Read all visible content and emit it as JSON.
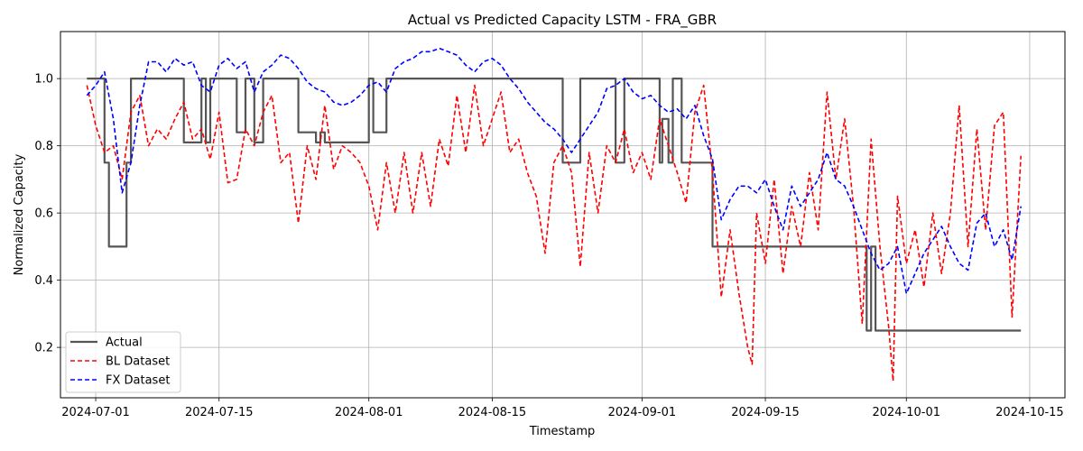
{
  "chart_data": {
    "type": "line",
    "title": "Actual vs Predicted Capacity LSTM - FRA_GBR",
    "xlabel": "Timestamp",
    "ylabel": "Normalized Capacity",
    "xlim": [
      "2024-06-27",
      "2024-10-19"
    ],
    "ylim": [
      0.05,
      1.14
    ],
    "x_ticks": [
      "2024-07-01",
      "2024-07-15",
      "2024-08-01",
      "2024-08-15",
      "2024-09-01",
      "2024-09-15",
      "2024-10-01",
      "2024-10-15"
    ],
    "y_ticks": [
      0.2,
      0.4,
      0.6,
      0.8,
      1.0
    ],
    "y_tick_labels": [
      "0.2",
      "0.4",
      "0.6",
      "0.8",
      "1.0"
    ],
    "grid": true,
    "legend_position": "lower-left",
    "series": [
      {
        "name": "Actual",
        "color": "#555555",
        "style": "solid",
        "step": true,
        "points": [
          [
            "2024-06-30",
            1.0
          ],
          [
            "2024-07-02",
            0.75
          ],
          [
            "2024-07-02.5",
            0.5
          ],
          [
            "2024-07-04.5",
            0.75
          ],
          [
            "2024-07-05",
            1.0
          ],
          [
            "2024-07-11",
            0.81
          ],
          [
            "2024-07-13",
            1.0
          ],
          [
            "2024-07-13.5",
            0.81
          ],
          [
            "2024-07-14",
            1.0
          ],
          [
            "2024-07-17",
            0.84
          ],
          [
            "2024-07-18",
            1.0
          ],
          [
            "2024-07-19",
            0.81
          ],
          [
            "2024-07-20",
            1.0
          ],
          [
            "2024-07-24",
            0.84
          ],
          [
            "2024-07-26",
            0.81
          ],
          [
            "2024-07-26.5",
            0.84
          ],
          [
            "2024-07-27",
            0.81
          ],
          [
            "2024-08-01",
            1.0
          ],
          [
            "2024-08-01.5",
            0.84
          ],
          [
            "2024-08-03",
            1.0
          ],
          [
            "2024-08-23",
            0.75
          ],
          [
            "2024-08-25",
            1.0
          ],
          [
            "2024-08-29",
            0.75
          ],
          [
            "2024-08-30",
            1.0
          ],
          [
            "2024-09-03",
            0.75
          ],
          [
            "2024-09-03.3",
            0.88
          ],
          [
            "2024-09-04",
            0.75
          ],
          [
            "2024-09-04.5",
            1.0
          ],
          [
            "2024-09-05.5",
            0.75
          ],
          [
            "2024-09-09",
            0.5
          ],
          [
            "2024-09-26.5",
            0.25
          ],
          [
            "2024-09-27",
            0.5
          ],
          [
            "2024-09-27.5",
            0.25
          ],
          [
            "2024-10-14",
            0.25
          ]
        ]
      },
      {
        "name": "BL Dataset",
        "color": "#ff0000",
        "style": "dashed",
        "points": [
          [
            "2024-06-30",
            0.98
          ],
          [
            "2024-07-01",
            0.86
          ],
          [
            "2024-07-02",
            0.78
          ],
          [
            "2024-07-03",
            0.8
          ],
          [
            "2024-07-04",
            0.7
          ],
          [
            "2024-07-05",
            0.9
          ],
          [
            "2024-07-06",
            0.95
          ],
          [
            "2024-07-07",
            0.8
          ],
          [
            "2024-07-08",
            0.85
          ],
          [
            "2024-07-09",
            0.82
          ],
          [
            "2024-07-10",
            0.88
          ],
          [
            "2024-07-11",
            0.93
          ],
          [
            "2024-07-12",
            0.82
          ],
          [
            "2024-07-13",
            0.85
          ],
          [
            "2024-07-14",
            0.76
          ],
          [
            "2024-07-15",
            0.9
          ],
          [
            "2024-07-16",
            0.69
          ],
          [
            "2024-07-17",
            0.7
          ],
          [
            "2024-07-18",
            0.85
          ],
          [
            "2024-07-19",
            0.8
          ],
          [
            "2024-07-20",
            0.9
          ],
          [
            "2024-07-21",
            0.95
          ],
          [
            "2024-07-22",
            0.75
          ],
          [
            "2024-07-23",
            0.78
          ],
          [
            "2024-07-24",
            0.57
          ],
          [
            "2024-07-25",
            0.8
          ],
          [
            "2024-07-26",
            0.7
          ],
          [
            "2024-07-27",
            0.92
          ],
          [
            "2024-07-28",
            0.73
          ],
          [
            "2024-07-29",
            0.8
          ],
          [
            "2024-07-30",
            0.78
          ],
          [
            "2024-07-31",
            0.75
          ],
          [
            "2024-08-01",
            0.68
          ],
          [
            "2024-08-02",
            0.55
          ],
          [
            "2024-08-03",
            0.75
          ],
          [
            "2024-08-04",
            0.6
          ],
          [
            "2024-08-05",
            0.78
          ],
          [
            "2024-08-06",
            0.6
          ],
          [
            "2024-08-07",
            0.78
          ],
          [
            "2024-08-08",
            0.62
          ],
          [
            "2024-08-09",
            0.82
          ],
          [
            "2024-08-10",
            0.74
          ],
          [
            "2024-08-11",
            0.95
          ],
          [
            "2024-08-12",
            0.78
          ],
          [
            "2024-08-13",
            0.98
          ],
          [
            "2024-08-14",
            0.8
          ],
          [
            "2024-08-15",
            0.88
          ],
          [
            "2024-08-16",
            0.96
          ],
          [
            "2024-08-17",
            0.78
          ],
          [
            "2024-08-18",
            0.82
          ],
          [
            "2024-08-19",
            0.72
          ],
          [
            "2024-08-20",
            0.65
          ],
          [
            "2024-08-21",
            0.48
          ],
          [
            "2024-08-22",
            0.75
          ],
          [
            "2024-08-23",
            0.8
          ],
          [
            "2024-08-24",
            0.72
          ],
          [
            "2024-08-25",
            0.44
          ],
          [
            "2024-08-26",
            0.78
          ],
          [
            "2024-08-27",
            0.6
          ],
          [
            "2024-08-28",
            0.8
          ],
          [
            "2024-08-29",
            0.75
          ],
          [
            "2024-08-30",
            0.85
          ],
          [
            "2024-08-31",
            0.72
          ],
          [
            "2024-09-01",
            0.78
          ],
          [
            "2024-09-02",
            0.7
          ],
          [
            "2024-09-03",
            0.88
          ],
          [
            "2024-09-04",
            0.8
          ],
          [
            "2024-09-05",
            0.72
          ],
          [
            "2024-09-06",
            0.63
          ],
          [
            "2024-09-07",
            0.9
          ],
          [
            "2024-09-08",
            0.98
          ],
          [
            "2024-09-09",
            0.72
          ],
          [
            "2024-09-10",
            0.35
          ],
          [
            "2024-09-11",
            0.55
          ],
          [
            "2024-09-12",
            0.36
          ],
          [
            "2024-09-13",
            0.2
          ],
          [
            "2024-09-13.5",
            0.15
          ],
          [
            "2024-09-14",
            0.6
          ],
          [
            "2024-09-15",
            0.45
          ],
          [
            "2024-09-16",
            0.7
          ],
          [
            "2024-09-17",
            0.42
          ],
          [
            "2024-09-18",
            0.62
          ],
          [
            "2024-09-19",
            0.5
          ],
          [
            "2024-09-20",
            0.72
          ],
          [
            "2024-09-21",
            0.55
          ],
          [
            "2024-09-22",
            0.96
          ],
          [
            "2024-09-23",
            0.7
          ],
          [
            "2024-09-24",
            0.88
          ],
          [
            "2024-09-25",
            0.62
          ],
          [
            "2024-09-26",
            0.27
          ],
          [
            "2024-09-27",
            0.82
          ],
          [
            "2024-09-28",
            0.5
          ],
          [
            "2024-09-29",
            0.26
          ],
          [
            "2024-09-29.5",
            0.1
          ],
          [
            "2024-09-30",
            0.65
          ],
          [
            "2024-10-01",
            0.45
          ],
          [
            "2024-10-02",
            0.55
          ],
          [
            "2024-10-03",
            0.38
          ],
          [
            "2024-10-04",
            0.6
          ],
          [
            "2024-10-05",
            0.42
          ],
          [
            "2024-10-06",
            0.6
          ],
          [
            "2024-10-07",
            0.92
          ],
          [
            "2024-10-08",
            0.5
          ],
          [
            "2024-10-09",
            0.85
          ],
          [
            "2024-10-10",
            0.55
          ],
          [
            "2024-10-11",
            0.86
          ],
          [
            "2024-10-12",
            0.9
          ],
          [
            "2024-10-13",
            0.29
          ],
          [
            "2024-10-14",
            0.77
          ]
        ]
      },
      {
        "name": "FX Dataset",
        "color": "#0000ff",
        "style": "dashed",
        "points": [
          [
            "2024-06-30",
            0.95
          ],
          [
            "2024-07-01",
            0.98
          ],
          [
            "2024-07-02",
            1.02
          ],
          [
            "2024-07-03",
            0.88
          ],
          [
            "2024-07-04",
            0.66
          ],
          [
            "2024-07-05",
            0.75
          ],
          [
            "2024-07-06",
            0.92
          ],
          [
            "2024-07-07",
            1.05
          ],
          [
            "2024-07-08",
            1.05
          ],
          [
            "2024-07-09",
            1.02
          ],
          [
            "2024-07-10",
            1.06
          ],
          [
            "2024-07-11",
            1.04
          ],
          [
            "2024-07-12",
            1.05
          ],
          [
            "2024-07-13",
            0.98
          ],
          [
            "2024-07-14",
            0.96
          ],
          [
            "2024-07-15",
            1.04
          ],
          [
            "2024-07-16",
            1.06
          ],
          [
            "2024-07-17",
            1.03
          ],
          [
            "2024-07-18",
            1.05
          ],
          [
            "2024-07-19",
            0.96
          ],
          [
            "2024-07-20",
            1.02
          ],
          [
            "2024-07-21",
            1.04
          ],
          [
            "2024-07-22",
            1.07
          ],
          [
            "2024-07-23",
            1.06
          ],
          [
            "2024-07-24",
            1.03
          ],
          [
            "2024-07-25",
            0.99
          ],
          [
            "2024-07-26",
            0.97
          ],
          [
            "2024-07-27",
            0.96
          ],
          [
            "2024-07-28",
            0.93
          ],
          [
            "2024-07-29",
            0.92
          ],
          [
            "2024-07-30",
            0.93
          ],
          [
            "2024-07-31",
            0.95
          ],
          [
            "2024-08-01",
            0.98
          ],
          [
            "2024-08-02",
            0.99
          ],
          [
            "2024-08-03",
            0.96
          ],
          [
            "2024-08-04",
            1.03
          ],
          [
            "2024-08-05",
            1.05
          ],
          [
            "2024-08-06",
            1.06
          ],
          [
            "2024-08-07",
            1.08
          ],
          [
            "2024-08-08",
            1.08
          ],
          [
            "2024-08-09",
            1.09
          ],
          [
            "2024-08-10",
            1.08
          ],
          [
            "2024-08-11",
            1.07
          ],
          [
            "2024-08-12",
            1.04
          ],
          [
            "2024-08-13",
            1.02
          ],
          [
            "2024-08-14",
            1.05
          ],
          [
            "2024-08-15",
            1.06
          ],
          [
            "2024-08-16",
            1.04
          ],
          [
            "2024-08-17",
            1.0
          ],
          [
            "2024-08-18",
            0.97
          ],
          [
            "2024-08-19",
            0.93
          ],
          [
            "2024-08-20",
            0.9
          ],
          [
            "2024-08-21",
            0.87
          ],
          [
            "2024-08-22",
            0.85
          ],
          [
            "2024-08-23",
            0.82
          ],
          [
            "2024-08-24",
            0.78
          ],
          [
            "2024-08-25",
            0.82
          ],
          [
            "2024-08-26",
            0.86
          ],
          [
            "2024-08-27",
            0.9
          ],
          [
            "2024-08-28",
            0.97
          ],
          [
            "2024-08-29",
            0.98
          ],
          [
            "2024-08-30",
            1.0
          ],
          [
            "2024-08-31",
            0.96
          ],
          [
            "2024-09-01",
            0.94
          ],
          [
            "2024-09-02",
            0.95
          ],
          [
            "2024-09-03",
            0.92
          ],
          [
            "2024-09-04",
            0.9
          ],
          [
            "2024-09-05",
            0.91
          ],
          [
            "2024-09-06",
            0.88
          ],
          [
            "2024-09-07",
            0.92
          ],
          [
            "2024-09-08",
            0.83
          ],
          [
            "2024-09-09",
            0.76
          ],
          [
            "2024-09-10",
            0.58
          ],
          [
            "2024-09-11",
            0.64
          ],
          [
            "2024-09-12",
            0.68
          ],
          [
            "2024-09-13",
            0.68
          ],
          [
            "2024-09-14",
            0.66
          ],
          [
            "2024-09-15",
            0.7
          ],
          [
            "2024-09-16",
            0.62
          ],
          [
            "2024-09-17",
            0.55
          ],
          [
            "2024-09-18",
            0.68
          ],
          [
            "2024-09-19",
            0.62
          ],
          [
            "2024-09-20",
            0.66
          ],
          [
            "2024-09-21",
            0.7
          ],
          [
            "2024-09-22",
            0.78
          ],
          [
            "2024-09-23",
            0.7
          ],
          [
            "2024-09-24",
            0.68
          ],
          [
            "2024-09-25",
            0.62
          ],
          [
            "2024-09-26",
            0.55
          ],
          [
            "2024-09-27",
            0.48
          ],
          [
            "2024-09-28",
            0.43
          ],
          [
            "2024-09-29",
            0.45
          ],
          [
            "2024-09-30",
            0.5
          ],
          [
            "2024-10-01",
            0.36
          ],
          [
            "2024-10-02",
            0.42
          ],
          [
            "2024-10-03",
            0.48
          ],
          [
            "2024-10-04",
            0.52
          ],
          [
            "2024-10-05",
            0.56
          ],
          [
            "2024-10-06",
            0.5
          ],
          [
            "2024-10-07",
            0.45
          ],
          [
            "2024-10-08",
            0.43
          ],
          [
            "2024-10-09",
            0.57
          ],
          [
            "2024-10-10",
            0.6
          ],
          [
            "2024-10-11",
            0.5
          ],
          [
            "2024-10-12",
            0.55
          ],
          [
            "2024-10-13",
            0.46
          ],
          [
            "2024-10-14",
            0.62
          ]
        ]
      }
    ]
  }
}
